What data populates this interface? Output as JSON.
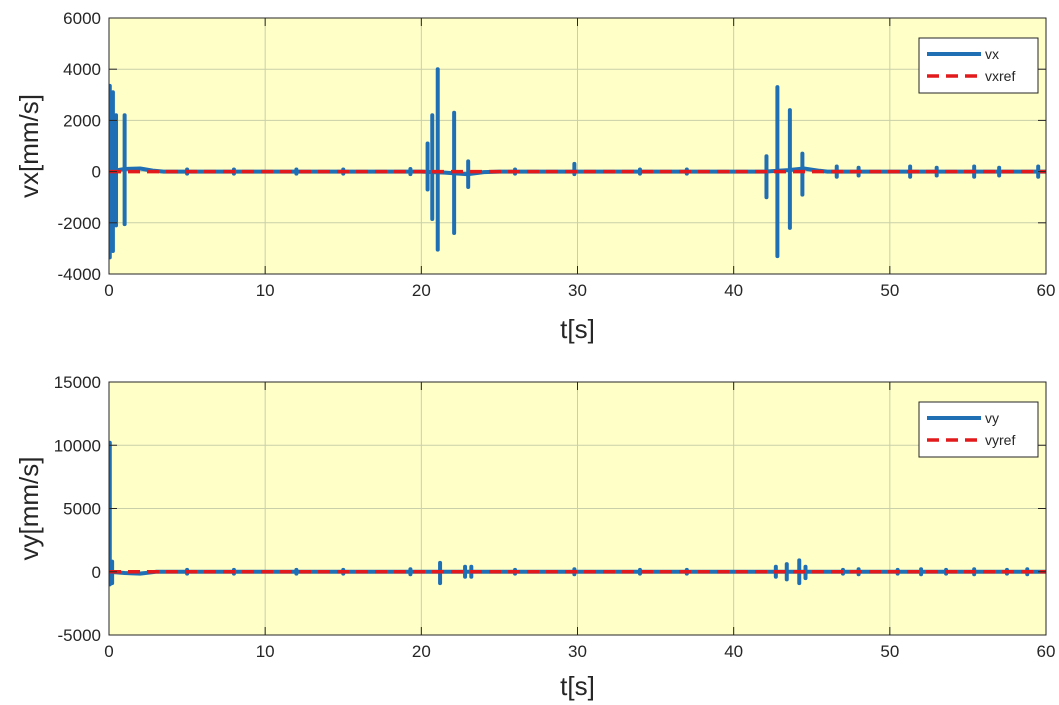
{
  "colors": {
    "plot_background": "#ffffc8",
    "measured_series": "#1f6fb5",
    "reference_series": "#e31a1c"
  },
  "chart_data": [
    {
      "type": "line",
      "xlabel": "t[s]",
      "ylabel": "vx[mm/s]",
      "xlim": [
        0,
        60
      ],
      "ylim": [
        -4000,
        6000
      ],
      "xticks": [
        0,
        10,
        20,
        30,
        40,
        50,
        60
      ],
      "yticks": [
        -4000,
        -2000,
        0,
        2000,
        4000,
        6000
      ],
      "grid": true,
      "legend_position": "top-right",
      "series": [
        {
          "name": "vx",
          "style": "solid",
          "baseline": [
            [
              0,
              0
            ],
            [
              1,
              100
            ],
            [
              2,
              120
            ],
            [
              2.8,
              40
            ],
            [
              3.5,
              0
            ],
            [
              20,
              0
            ],
            [
              21.5,
              -40
            ],
            [
              23,
              -100
            ],
            [
              24,
              -20
            ],
            [
              25,
              0
            ],
            [
              42,
              0
            ],
            [
              43.5,
              60
            ],
            [
              44.5,
              120
            ],
            [
              45.5,
              30
            ],
            [
              46,
              0
            ],
            [
              60,
              0
            ]
          ],
          "spikes": [
            [
              0.05,
              3350,
              -3350
            ],
            [
              0.25,
              3100,
              -3100
            ],
            [
              0.45,
              2200,
              -2100
            ],
            [
              1.0,
              2200,
              -2050
            ],
            [
              20.4,
              1100,
              -700
            ],
            [
              20.7,
              2200,
              -1850
            ],
            [
              21.05,
              4000,
              -3050
            ],
            [
              22.1,
              2300,
              -2400
            ],
            [
              23.0,
              400,
              -600
            ],
            [
              29.8,
              300,
              -100
            ],
            [
              42.1,
              600,
              -1000
            ],
            [
              42.8,
              3300,
              -3300
            ],
            [
              43.6,
              2400,
              -2200
            ],
            [
              44.4,
              700,
              -900
            ],
            [
              19.3,
              100,
              -100
            ],
            [
              46.6,
              200,
              -200
            ],
            [
              51.3,
              200,
              -200
            ],
            [
              55.4,
              200,
              -200
            ],
            [
              59.5,
              200,
              -200
            ],
            [
              5,
              80,
              -80
            ],
            [
              8,
              80,
              -80
            ],
            [
              12,
              80,
              -80
            ],
            [
              15,
              80,
              -80
            ],
            [
              26,
              80,
              -80
            ],
            [
              34,
              80,
              -80
            ],
            [
              37,
              80,
              -80
            ],
            [
              48,
              150,
              -150
            ],
            [
              53,
              150,
              -150
            ],
            [
              57,
              150,
              -150
            ]
          ]
        },
        {
          "name": "vxref",
          "style": "dashed",
          "points": [
            [
              0,
              0
            ],
            [
              60,
              0
            ]
          ]
        }
      ]
    },
    {
      "type": "line",
      "xlabel": "t[s]",
      "ylabel": "vy[mm/s]",
      "xlim": [
        0,
        60
      ],
      "ylim": [
        -5000,
        15000
      ],
      "xticks": [
        0,
        10,
        20,
        30,
        40,
        50,
        60
      ],
      "yticks": [
        -5000,
        0,
        5000,
        10000,
        15000
      ],
      "grid": true,
      "legend_position": "top-right",
      "series": [
        {
          "name": "vy",
          "style": "solid",
          "baseline": [
            [
              0,
              0
            ],
            [
              1,
              -100
            ],
            [
              2,
              -150
            ],
            [
              3,
              0
            ],
            [
              60,
              0
            ]
          ],
          "spikes": [
            [
              0.05,
              10200,
              -1000
            ],
            [
              0.2,
              800,
              -900
            ],
            [
              21.2,
              700,
              -900
            ],
            [
              22.8,
              400,
              -400
            ],
            [
              23.2,
              400,
              -400
            ],
            [
              42.7,
              400,
              -400
            ],
            [
              43.4,
              600,
              -600
            ],
            [
              44.2,
              900,
              -900
            ],
            [
              44.6,
              400,
              -500
            ],
            [
              19.3,
              200,
              -200
            ],
            [
              29.8,
              200,
              -200
            ],
            [
              48,
              200,
              -200
            ],
            [
              52,
              200,
              -200
            ],
            [
              55.4,
              200,
              -200
            ],
            [
              58.8,
              200,
              -200
            ],
            [
              5,
              150,
              -150
            ],
            [
              8,
              150,
              -150
            ],
            [
              12,
              150,
              -150
            ],
            [
              15,
              150,
              -150
            ],
            [
              26,
              150,
              -150
            ],
            [
              34,
              150,
              -150
            ],
            [
              37,
              150,
              -150
            ],
            [
              47,
              150,
              -150
            ],
            [
              50.5,
              150,
              -150
            ],
            [
              53.6,
              150,
              -150
            ],
            [
              57.5,
              150,
              -150
            ]
          ]
        },
        {
          "name": "vyref",
          "style": "dashed",
          "points": [
            [
              0,
              0
            ],
            [
              60,
              0
            ]
          ]
        }
      ]
    }
  ]
}
